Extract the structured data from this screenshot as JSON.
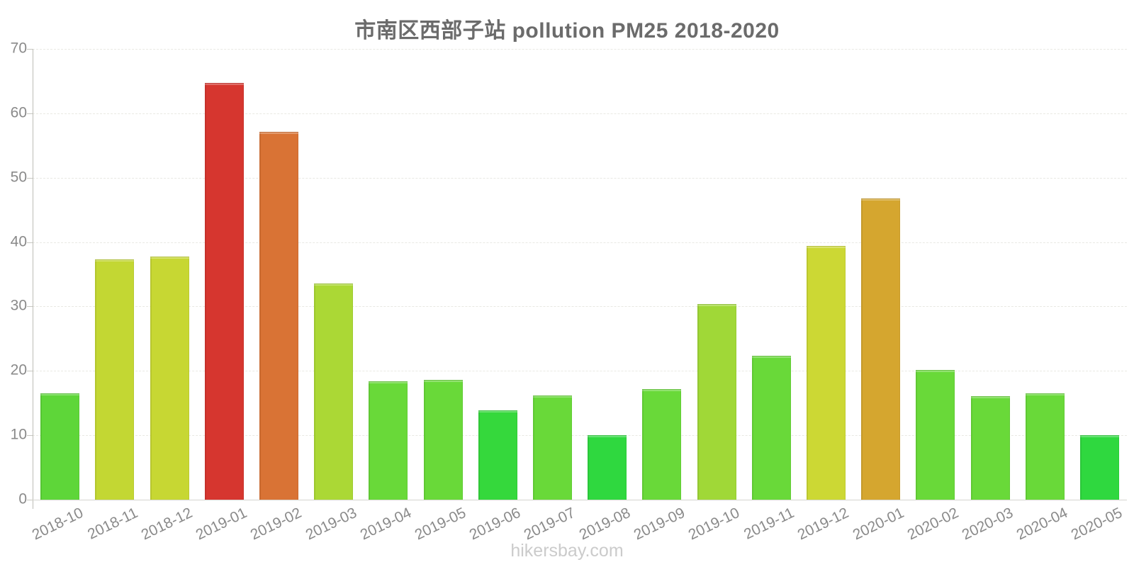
{
  "chart_data": {
    "type": "bar",
    "title": "市南区西部子站 pollution PM25 2018-2020",
    "footer": "hikersbay.com",
    "categories": [
      "2018-10",
      "2018-11",
      "2018-12",
      "2019-01",
      "2019-02",
      "2019-03",
      "2019-04",
      "2019-05",
      "2019-06",
      "2019-07",
      "2019-08",
      "2019-09",
      "2019-10",
      "2019-11",
      "2019-12",
      "2020-01",
      "2020-02",
      "2020-03",
      "2020-04",
      "2020-05"
    ],
    "values": [
      16.5,
      37.3,
      37.8,
      64.7,
      57.1,
      33.6,
      18.4,
      18.6,
      13.9,
      16.2,
      10.0,
      17.2,
      30.4,
      22.3,
      39.4,
      46.8,
      20.1,
      16.1,
      16.5,
      10.0
    ],
    "bar_colors": [
      "#5ed639",
      "#c3d733",
      "#c7d733",
      "#d6362f",
      "#d97335",
      "#abd835",
      "#69d939",
      "#69d939",
      "#35d83c",
      "#69d939",
      "#2fd83f",
      "#69d939",
      "#a0d837",
      "#69d939",
      "#ccd834",
      "#d5a62f",
      "#69d939",
      "#69d939",
      "#69d939",
      "#2fd83f"
    ],
    "ylim": [
      0,
      70
    ],
    "yticks": [
      0,
      10,
      20,
      30,
      40,
      50,
      60,
      70
    ],
    "xlabel": "",
    "ylabel": "",
    "legend": "none",
    "grid": "horizontal-dashed",
    "colors": {
      "title": "#6b6b6b",
      "tick_labels": "#8a8a8a",
      "axis": "#bdbdb6",
      "gridline": "#e9e9e3",
      "watermark": "#cbcbcb"
    }
  }
}
